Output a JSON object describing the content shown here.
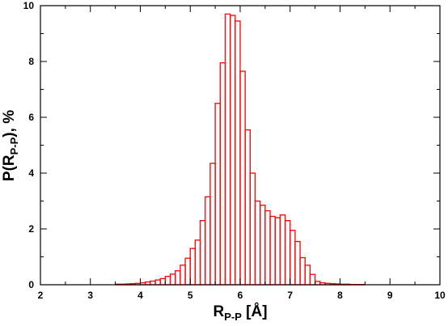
{
  "chart_data": {
    "type": "bar",
    "style": "step-histogram",
    "bar_color": "#ff0000",
    "xlabel": {
      "main": "R",
      "sub": "P-P",
      "suffix": " [Å]"
    },
    "ylabel": {
      "main": "P(R",
      "sub": "P-P",
      "suffix": "), %"
    },
    "xlim": [
      2,
      10
    ],
    "ylim": [
      0,
      10
    ],
    "xticks": [
      2,
      3,
      4,
      5,
      6,
      7,
      8,
      9,
      10
    ],
    "yticks": [
      0,
      2,
      4,
      6,
      8,
      10
    ],
    "bin_width": 0.1,
    "bins_start": [
      2.0,
      2.1,
      2.2,
      2.3,
      2.4,
      2.5,
      2.6,
      2.7,
      2.8,
      2.9,
      3.0,
      3.1,
      3.2,
      3.3,
      3.4,
      3.5,
      3.6,
      3.7,
      3.8,
      3.9,
      4.0,
      4.1,
      4.2,
      4.3,
      4.4,
      4.5,
      4.6,
      4.7,
      4.8,
      4.9,
      5.0,
      5.1,
      5.2,
      5.3,
      5.4,
      5.5,
      5.6,
      5.7,
      5.8,
      5.9,
      6.0,
      6.1,
      6.2,
      6.3,
      6.4,
      6.5,
      6.6,
      6.7,
      6.8,
      6.9,
      7.0,
      7.1,
      7.2,
      7.3,
      7.4,
      7.5,
      7.6,
      7.7,
      7.8,
      7.9,
      8.0,
      8.1,
      8.2,
      8.3,
      8.4,
      8.5,
      8.6,
      8.7,
      8.8,
      8.9,
      9.0,
      9.1,
      9.2,
      9.3,
      9.4,
      9.5,
      9.6,
      9.7,
      9.8,
      9.9
    ],
    "values": [
      0.0,
      0.0,
      0.0,
      0.0,
      0.0,
      0.0,
      0.0,
      0.0,
      0.0,
      0.0,
      0.0,
      0.0,
      0.0,
      0.0,
      0.0,
      0.02,
      0.02,
      0.03,
      0.04,
      0.05,
      0.07,
      0.1,
      0.13,
      0.17,
      0.22,
      0.3,
      0.38,
      0.5,
      0.7,
      0.95,
      1.3,
      1.6,
      2.3,
      3.15,
      4.35,
      6.5,
      7.95,
      9.7,
      9.65,
      9.45,
      7.65,
      5.55,
      4.0,
      3.0,
      2.85,
      2.65,
      2.45,
      2.4,
      2.5,
      2.3,
      1.95,
      1.55,
      0.97,
      0.7,
      0.37,
      0.12,
      0.07,
      0.05,
      0.04,
      0.03,
      0.02,
      0.02,
      0.01,
      0.01,
      0.01,
      0.0,
      0.0,
      0.0,
      0.0,
      0.0,
      0.0,
      0.0,
      0.0,
      0.0,
      0.0,
      0.0,
      0.0,
      0.0,
      0.0,
      0.0
    ]
  }
}
